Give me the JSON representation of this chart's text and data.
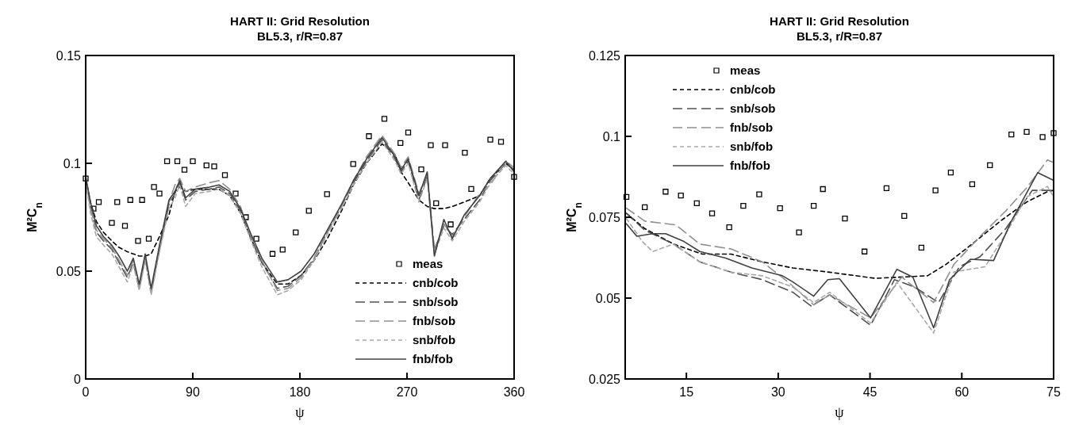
{
  "chart_data": [
    {
      "type": "line",
      "title": "HART II: Grid Resolution",
      "subtitle": "BL5.3, r/R=0.87",
      "xlabel": "ψ",
      "ylabel": "M²C$_{n}$",
      "xlim": [
        0,
        360
      ],
      "xticks": [
        0,
        90,
        180,
        270,
        360
      ],
      "ylim": [
        0,
        0.15
      ],
      "yticks": [
        0,
        0.05,
        0.1,
        0.15
      ],
      "grid": false,
      "legend": "bottom right",
      "series": [
        {
          "name": "meas",
          "type": "scatter",
          "marker": "square",
          "color": "#000000",
          "x": [
            0,
            6.6,
            11,
            22,
            26.5,
            33,
            37.5,
            44,
            47.4,
            53,
            57.4,
            62,
            68.4,
            77,
            83,
            90,
            101.5,
            108,
            117,
            126,
            134.6,
            143.4,
            157,
            165.5,
            176.5,
            187.5,
            202.8,
            224.8,
            238,
            251,
            264.5,
            271,
            282,
            290,
            294.5,
            302,
            306.7,
            318.6,
            324,
            340,
            349,
            360
          ],
          "values": [
            0.093,
            0.079,
            0.082,
            0.0724,
            0.082,
            0.071,
            0.083,
            0.064,
            0.083,
            0.065,
            0.089,
            0.086,
            0.101,
            0.101,
            0.097,
            0.101,
            0.099,
            0.0986,
            0.0945,
            0.086,
            0.075,
            0.065,
            0.058,
            0.06,
            0.068,
            0.078,
            0.0857,
            0.0997,
            0.1126,
            0.1206,
            0.1094,
            0.1143,
            0.0972,
            0.1084,
            0.0815,
            0.1084,
            0.0717,
            0.1049,
            0.0881,
            0.111,
            0.11,
            0.0937
          ]
        },
        {
          "name": "cnb/cob",
          "color": "#000000",
          "line_style": "dotted",
          "x": [
            0,
            4,
            9,
            15,
            22,
            28,
            35,
            40,
            45,
            50,
            55,
            62,
            70,
            75,
            79,
            84,
            92,
            104,
            112,
            121,
            130,
            139,
            148,
            161,
            170,
            181,
            192,
            203,
            215,
            225,
            236,
            249,
            260,
            265,
            271,
            280,
            287,
            293,
            301,
            308,
            318,
            331,
            340,
            353,
            360
          ],
          "values": [
            0.093,
            0.082,
            0.073,
            0.068,
            0.064,
            0.061,
            0.059,
            0.058,
            0.057,
            0.057,
            0.058,
            0.066,
            0.076,
            0.087,
            0.089,
            0.087,
            0.088,
            0.088,
            0.088,
            0.085,
            0.077,
            0.065,
            0.054,
            0.044,
            0.044,
            0.048,
            0.055,
            0.065,
            0.078,
            0.09,
            0.1,
            0.109,
            0.104,
            0.096,
            0.091,
            0.083,
            0.08,
            0.079,
            0.079,
            0.08,
            0.082,
            0.085,
            0.093,
            0.1,
            0.097
          ]
        },
        {
          "name": "snb/sob",
          "color": "#505050",
          "line_style": "dashed",
          "x": [
            0,
            4,
            9,
            15,
            22,
            28,
            35,
            40,
            45,
            50,
            55,
            62,
            70,
            75,
            79,
            84,
            92,
            104,
            112,
            121,
            130,
            139,
            148,
            161,
            170,
            181,
            192,
            203,
            215,
            225,
            236,
            249,
            260,
            265,
            271,
            280,
            287,
            293,
            301,
            308,
            318,
            331,
            340,
            353,
            360
          ],
          "values": [
            0.093,
            0.08,
            0.068,
            0.064,
            0.06,
            0.054,
            0.047,
            0.054,
            0.042,
            0.056,
            0.04,
            0.06,
            0.081,
            0.086,
            0.091,
            0.083,
            0.087,
            0.088,
            0.089,
            0.086,
            0.078,
            0.065,
            0.054,
            0.042,
            0.043,
            0.048,
            0.056,
            0.068,
            0.08,
            0.091,
            0.101,
            0.111,
            0.102,
            0.096,
            0.101,
            0.083,
            0.094,
            0.06,
            0.071,
            0.067,
            0.074,
            0.083,
            0.092,
            0.1,
            0.097
          ]
        },
        {
          "name": "fnb/sob",
          "color": "#909090",
          "line_style": "dashed",
          "x": [
            0,
            4,
            9,
            15,
            22,
            28,
            35,
            40,
            45,
            50,
            55,
            62,
            70,
            75,
            79,
            84,
            92,
            104,
            112,
            121,
            130,
            139,
            148,
            161,
            170,
            181,
            192,
            203,
            215,
            225,
            236,
            249,
            260,
            265,
            271,
            280,
            287,
            293,
            301,
            308,
            318,
            331,
            340,
            353,
            360
          ],
          "values": [
            0.092,
            0.079,
            0.069,
            0.065,
            0.061,
            0.055,
            0.048,
            0.055,
            0.043,
            0.057,
            0.041,
            0.061,
            0.082,
            0.09,
            0.093,
            0.087,
            0.089,
            0.091,
            0.092,
            0.088,
            0.08,
            0.066,
            0.055,
            0.041,
            0.042,
            0.047,
            0.056,
            0.068,
            0.08,
            0.092,
            0.103,
            0.113,
            0.104,
            0.098,
            0.103,
            0.086,
            0.095,
            0.059,
            0.072,
            0.066,
            0.075,
            0.086,
            0.09,
            0.101,
            0.098
          ]
        },
        {
          "name": "snb/fob",
          "color": "#a8a8a8",
          "line_style": "dotted",
          "x": [
            0,
            4,
            9,
            15,
            22,
            28,
            35,
            40,
            45,
            50,
            55,
            62,
            70,
            75,
            79,
            84,
            92,
            104,
            112,
            121,
            130,
            139,
            148,
            161,
            170,
            181,
            192,
            203,
            215,
            225,
            236,
            249,
            260,
            265,
            271,
            280,
            287,
            293,
            301,
            308,
            318,
            331,
            340,
            353,
            360
          ],
          "values": [
            0.091,
            0.077,
            0.066,
            0.062,
            0.058,
            0.052,
            0.045,
            0.053,
            0.041,
            0.055,
            0.039,
            0.059,
            0.079,
            0.084,
            0.09,
            0.08,
            0.086,
            0.087,
            0.088,
            0.085,
            0.077,
            0.064,
            0.052,
            0.039,
            0.041,
            0.046,
            0.055,
            0.067,
            0.079,
            0.09,
            0.1,
            0.11,
            0.101,
            0.095,
            0.1,
            0.082,
            0.093,
            0.058,
            0.07,
            0.064,
            0.073,
            0.082,
            0.091,
            0.099,
            0.095
          ]
        },
        {
          "name": "fnb/fob",
          "color": "#404040",
          "line_style": "solid",
          "x": [
            0,
            4,
            9,
            15,
            22,
            28,
            35,
            40,
            45,
            50,
            55,
            62,
            70,
            75,
            79,
            84,
            92,
            104,
            112,
            121,
            130,
            139,
            148,
            161,
            170,
            181,
            192,
            203,
            215,
            225,
            236,
            249,
            260,
            265,
            271,
            280,
            287,
            293,
            301,
            308,
            318,
            331,
            340,
            353,
            360
          ],
          "values": [
            0.094,
            0.082,
            0.071,
            0.066,
            0.062,
            0.057,
            0.05,
            0.056,
            0.044,
            0.058,
            0.042,
            0.062,
            0.083,
            0.087,
            0.092,
            0.084,
            0.088,
            0.089,
            0.09,
            0.087,
            0.079,
            0.067,
            0.056,
            0.045,
            0.046,
            0.05,
            0.058,
            0.069,
            0.081,
            0.092,
            0.102,
            0.112,
            0.103,
            0.097,
            0.102,
            0.085,
            0.096,
            0.057,
            0.074,
            0.065,
            0.076,
            0.085,
            0.093,
            0.101,
            0.096
          ]
        }
      ]
    },
    {
      "type": "line",
      "title": "HART II: Grid Resolution",
      "subtitle": "BL5.3, r/R=0.87",
      "xlabel": "ψ",
      "ylabel": "M²C$_{n}$",
      "xlim": [
        5,
        75
      ],
      "xticks": [
        15,
        30,
        45,
        60,
        75
      ],
      "ylim": [
        0.025,
        0.125
      ],
      "yticks": [
        0.025,
        0.05,
        0.075,
        0.1,
        0.125
      ],
      "grid": false,
      "legend": "top left",
      "series": [
        {
          "name": "meas",
          "type": "scatter",
          "marker": "square",
          "color": "#000000",
          "x": [
            5.2,
            8.2,
            11.6,
            14.1,
            16.7,
            19.2,
            22,
            24.3,
            26.9,
            30.3,
            33.4,
            35.8,
            37.3,
            40.9,
            44.1,
            47.7,
            50.6,
            53.4,
            55.7,
            58.2,
            61.7,
            64.6,
            68.1,
            70.6,
            73.2,
            75
          ],
          "values": [
            0.0813,
            0.0781,
            0.0829,
            0.0817,
            0.0793,
            0.0762,
            0.0719,
            0.0785,
            0.0821,
            0.0778,
            0.0703,
            0.0785,
            0.0837,
            0.0746,
            0.0644,
            0.084,
            0.0754,
            0.0656,
            0.0833,
            0.0888,
            0.0852,
            0.0911,
            0.1006,
            0.1014,
            0.0998,
            0.101
          ]
        },
        {
          "name": "cnb/cob",
          "color": "#000000",
          "line_style": "dotted",
          "x": [
            5.2,
            8.2,
            12.9,
            17.6,
            22.3,
            27.4,
            32.4,
            38.4,
            45.9,
            54.4,
            57.4,
            61.2,
            66.3,
            70.6,
            74,
            75
          ],
          "values": [
            0.0762,
            0.0715,
            0.0667,
            0.0636,
            0.0636,
            0.0612,
            0.0593,
            0.058,
            0.0561,
            0.0569,
            0.0604,
            0.066,
            0.0738,
            0.0797,
            0.0829,
            0.0833
          ]
        },
        {
          "name": "snb/sob",
          "color": "#505050",
          "line_style": "dashed",
          "x": [
            5.2,
            8.2,
            12.9,
            17.2,
            22.3,
            27.4,
            32.4,
            35.4,
            38.4,
            45.1,
            49,
            52.3,
            56.2,
            59.6,
            63,
            67.2,
            71.5,
            75
          ],
          "values": [
            0.0762,
            0.071,
            0.0667,
            0.0612,
            0.058,
            0.0557,
            0.0518,
            0.0475,
            0.051,
            0.0416,
            0.0557,
            0.0534,
            0.0486,
            0.0597,
            0.0628,
            0.0715,
            0.0833,
            0.0833
          ]
        },
        {
          "name": "fnb/sob",
          "color": "#909090",
          "line_style": "dashed",
          "x": [
            5.2,
            8.2,
            13.3,
            17.2,
            22.3,
            27.4,
            31.6,
            35.8,
            38.4,
            45.1,
            50.2,
            55.4,
            58.7,
            63,
            67.2,
            70.6,
            74,
            75
          ],
          "values": [
            0.0778,
            0.0738,
            0.0726,
            0.0667,
            0.0652,
            0.0612,
            0.055,
            0.0479,
            0.051,
            0.0439,
            0.0565,
            0.0486,
            0.0604,
            0.0691,
            0.077,
            0.0841,
            0.0927,
            0.0919
          ]
        },
        {
          "name": "snb/fob",
          "color": "#a8a8a8",
          "line_style": "dotted",
          "x": [
            5.2,
            7.8,
            9.5,
            12.9,
            17.2,
            22.3,
            27.4,
            32.4,
            35.8,
            38.4,
            45.1,
            49.4,
            55.4,
            58.7,
            63.8,
            67.2,
            70.6,
            74,
            75
          ],
          "values": [
            0.0746,
            0.0675,
            0.0644,
            0.0667,
            0.0612,
            0.058,
            0.0569,
            0.0534,
            0.0486,
            0.0518,
            0.0423,
            0.0549,
            0.0392,
            0.0581,
            0.0597,
            0.0699,
            0.0813,
            0.0845,
            0.0813
          ]
        },
        {
          "name": "fnb/fob",
          "color": "#404040",
          "line_style": "solid",
          "x": [
            5.2,
            6.9,
            9.5,
            11.6,
            14.6,
            17.2,
            21.4,
            25.7,
            30.7,
            32.4,
            35.8,
            38.1,
            40,
            45.1,
            49.4,
            52,
            55.4,
            58,
            61.4,
            65.2,
            68.1,
            72.4,
            75
          ],
          "values": [
            0.073,
            0.0691,
            0.0699,
            0.0699,
            0.0675,
            0.0644,
            0.0624,
            0.0593,
            0.0569,
            0.055,
            0.0506,
            0.0557,
            0.056,
            0.0439,
            0.0589,
            0.0565,
            0.0408,
            0.0557,
            0.062,
            0.0616,
            0.0738,
            0.0888,
            0.0864
          ]
        }
      ]
    }
  ]
}
